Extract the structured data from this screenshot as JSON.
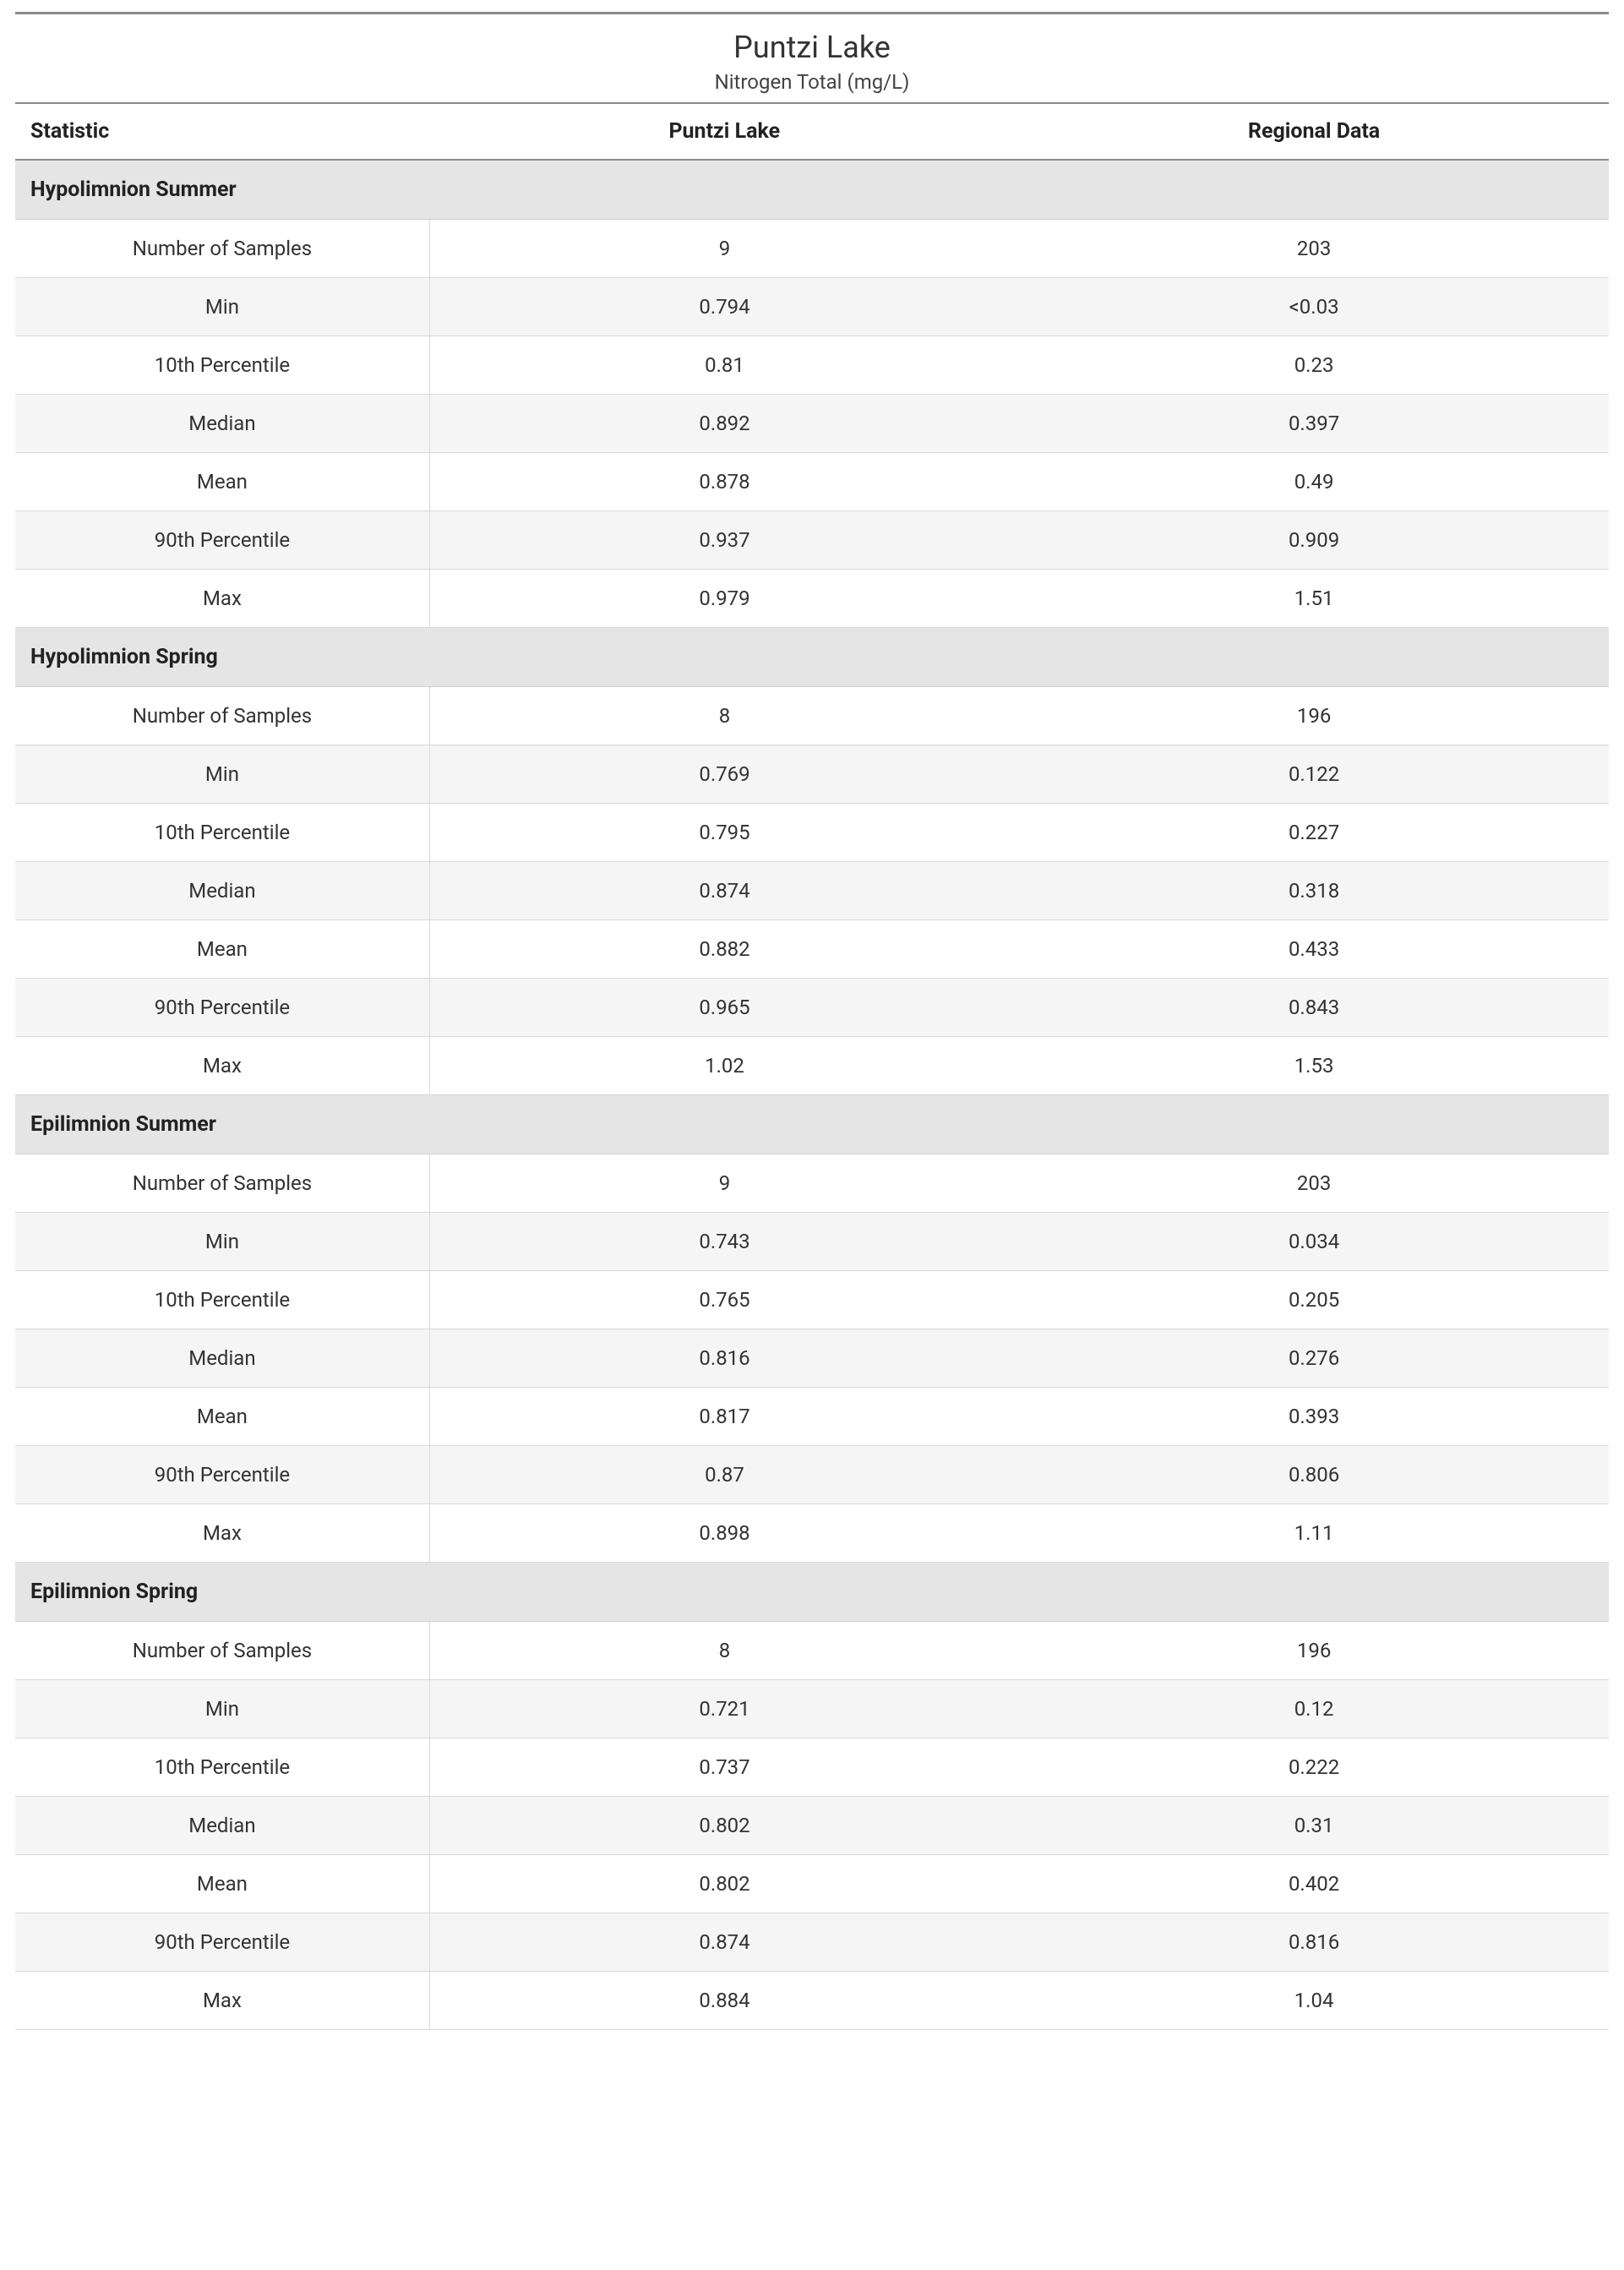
{
  "title": "Puntzi Lake",
  "subtitle": "Nitrogen Total (mg/L)",
  "columns": [
    "Statistic",
    "Puntzi Lake",
    "Regional Data"
  ],
  "colors": {
    "rule": "#8a8a8a",
    "section_bg": "#e5e5e5",
    "row_border": "#d9d9d9",
    "alt_row_bg": "#f5f5f5",
    "text": "#333333",
    "background": "#ffffff"
  },
  "fonts": {
    "family": "Segoe UI",
    "title_size_pt": 27,
    "subtitle_size_pt": 18,
    "header_size_pt": 19,
    "cell_size_pt": 18
  },
  "stat_labels": [
    "Number of Samples",
    "Min",
    "10th Percentile",
    "Median",
    "Mean",
    "90th Percentile",
    "Max"
  ],
  "sections": [
    {
      "name": "Hypolimnion Summer",
      "rows": [
        [
          "Number of Samples",
          "9",
          "203"
        ],
        [
          "Min",
          "0.794",
          "<0.03"
        ],
        [
          "10th Percentile",
          "0.81",
          "0.23"
        ],
        [
          "Median",
          "0.892",
          "0.397"
        ],
        [
          "Mean",
          "0.878",
          "0.49"
        ],
        [
          "90th Percentile",
          "0.937",
          "0.909"
        ],
        [
          "Max",
          "0.979",
          "1.51"
        ]
      ]
    },
    {
      "name": "Hypolimnion Spring",
      "rows": [
        [
          "Number of Samples",
          "8",
          "196"
        ],
        [
          "Min",
          "0.769",
          "0.122"
        ],
        [
          "10th Percentile",
          "0.795",
          "0.227"
        ],
        [
          "Median",
          "0.874",
          "0.318"
        ],
        [
          "Mean",
          "0.882",
          "0.433"
        ],
        [
          "90th Percentile",
          "0.965",
          "0.843"
        ],
        [
          "Max",
          "1.02",
          "1.53"
        ]
      ]
    },
    {
      "name": "Epilimnion Summer",
      "rows": [
        [
          "Number of Samples",
          "9",
          "203"
        ],
        [
          "Min",
          "0.743",
          "0.034"
        ],
        [
          "10th Percentile",
          "0.765",
          "0.205"
        ],
        [
          "Median",
          "0.816",
          "0.276"
        ],
        [
          "Mean",
          "0.817",
          "0.393"
        ],
        [
          "90th Percentile",
          "0.87",
          "0.806"
        ],
        [
          "Max",
          "0.898",
          "1.11"
        ]
      ]
    },
    {
      "name": "Epilimnion Spring",
      "rows": [
        [
          "Number of Samples",
          "8",
          "196"
        ],
        [
          "Min",
          "0.721",
          "0.12"
        ],
        [
          "10th Percentile",
          "0.737",
          "0.222"
        ],
        [
          "Median",
          "0.802",
          "0.31"
        ],
        [
          "Mean",
          "0.802",
          "0.402"
        ],
        [
          "90th Percentile",
          "0.874",
          "0.816"
        ],
        [
          "Max",
          "0.884",
          "1.04"
        ]
      ]
    }
  ]
}
